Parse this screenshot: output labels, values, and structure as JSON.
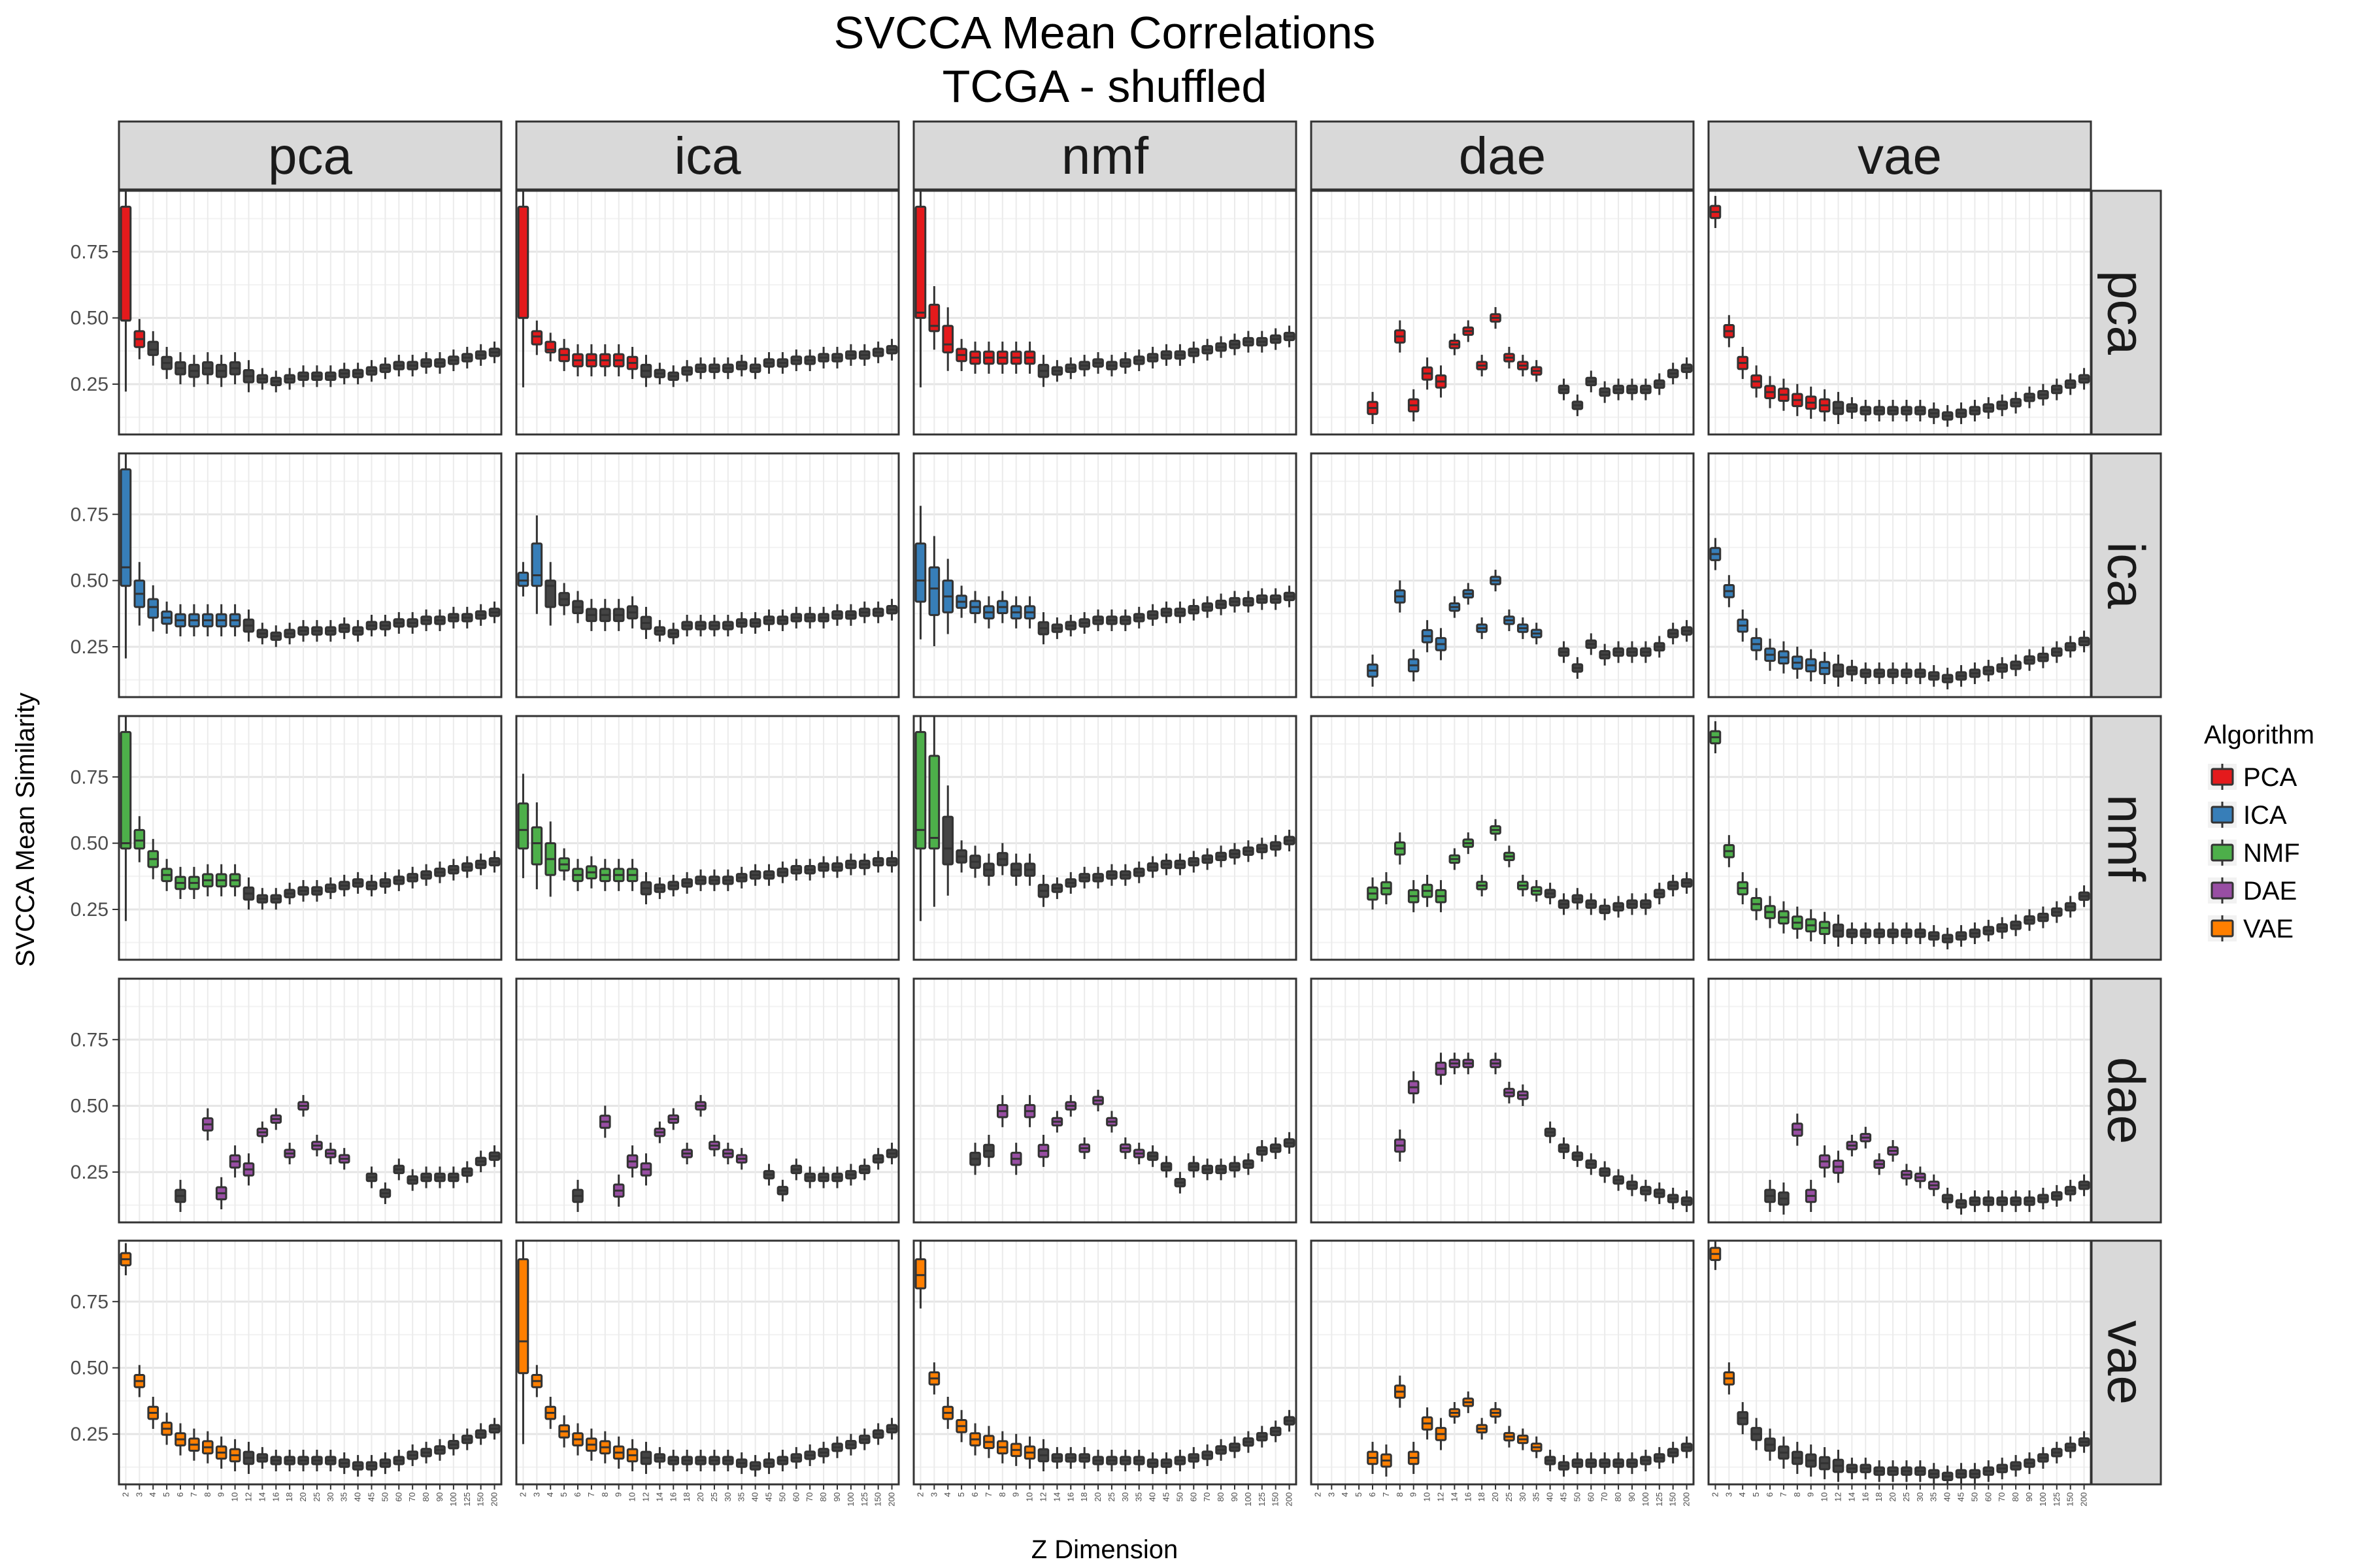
{
  "chart_data": {
    "type": "boxplot-facet-grid",
    "title_lines": [
      "SVCCA Mean Correlations",
      "TCGA - shuffled"
    ],
    "xlabel": "Z Dimension",
    "ylabel": "SVCCA Mean Similarity",
    "y_ticks": [
      0.25,
      0.5,
      0.75
    ],
    "y_tick_labels": [
      "0.25",
      "0.50",
      "0.75"
    ],
    "ylim": [
      0.06,
      0.98
    ],
    "grid": true,
    "legend_position": "right",
    "legend_title": "Algorithm",
    "legend": [
      {
        "key": "pca",
        "label": "PCA",
        "color": "#e41a1c"
      },
      {
        "key": "ica",
        "label": "ICA",
        "color": "#377eb8"
      },
      {
        "key": "nmf",
        "label": "NMF",
        "color": "#4daf4a"
      },
      {
        "key": "dae",
        "label": "DAE",
        "color": "#984ea3"
      },
      {
        "key": "vae",
        "label": "VAE",
        "color": "#ff7f00"
      }
    ],
    "col_facets": [
      "pca",
      "ica",
      "nmf",
      "dae",
      "vae"
    ],
    "row_facets": [
      "pca",
      "ica",
      "nmf",
      "dae",
      "vae"
    ],
    "z_dims": [
      "2",
      "3",
      "4",
      "5",
      "6",
      "7",
      "8",
      "9",
      "10",
      "12",
      "14",
      "16",
      "18",
      "20",
      "25",
      "30",
      "35",
      "40",
      "45",
      "50",
      "60",
      "70",
      "80",
      "90",
      "100",
      "125",
      "150",
      "200"
    ],
    "panel_medians": {
      "pca|pca": [
        0.49,
        0.42,
        0.38,
        0.33,
        0.31,
        0.3,
        0.31,
        0.3,
        0.31,
        0.28,
        0.27,
        0.26,
        0.27,
        0.28,
        0.28,
        0.28,
        0.29,
        0.29,
        0.3,
        0.31,
        0.32,
        0.32,
        0.33,
        0.33,
        0.34,
        0.35,
        0.36,
        0.37
      ],
      "pca|ica": [
        0.5,
        0.43,
        0.38,
        0.36,
        0.34,
        0.34,
        0.34,
        0.34,
        0.33,
        0.3,
        0.29,
        0.28,
        0.3,
        0.31,
        0.31,
        0.31,
        0.32,
        0.31,
        0.33,
        0.33,
        0.34,
        0.34,
        0.35,
        0.35,
        0.36,
        0.36,
        0.37,
        0.38
      ],
      "pca|nmf": [
        0.52,
        0.47,
        0.4,
        0.36,
        0.35,
        0.35,
        0.35,
        0.35,
        0.35,
        0.3,
        0.3,
        0.31,
        0.32,
        0.33,
        0.32,
        0.33,
        0.34,
        0.35,
        0.36,
        0.36,
        0.37,
        0.38,
        0.39,
        0.4,
        0.41,
        0.41,
        0.42,
        0.43
      ],
      "pca|dae": [
        null,
        null,
        null,
        null,
        0.16,
        null,
        0.43,
        0.17,
        0.29,
        0.26,
        0.4,
        0.45,
        0.32,
        0.5,
        0.35,
        0.32,
        0.3,
        null,
        0.23,
        0.17,
        0.26,
        0.22,
        0.23,
        0.23,
        0.23,
        0.25,
        0.29,
        0.31
      ],
      "pca|vae": [
        0.9,
        0.45,
        0.33,
        0.26,
        0.22,
        0.21,
        0.19,
        0.18,
        0.17,
        0.16,
        0.16,
        0.15,
        0.15,
        0.15,
        0.15,
        0.15,
        0.14,
        0.13,
        0.14,
        0.15,
        0.16,
        0.17,
        0.18,
        0.2,
        0.21,
        0.23,
        0.25,
        0.27
      ],
      "ica|pca": [
        0.55,
        0.45,
        0.4,
        0.36,
        0.35,
        0.35,
        0.35,
        0.35,
        0.35,
        0.33,
        0.3,
        0.29,
        0.3,
        0.31,
        0.31,
        0.31,
        0.32,
        0.31,
        0.33,
        0.33,
        0.34,
        0.34,
        0.35,
        0.35,
        0.36,
        0.36,
        0.37,
        0.38
      ],
      "ica|ica": [
        0.5,
        0.52,
        0.48,
        0.43,
        0.4,
        0.37,
        0.37,
        0.37,
        0.38,
        0.34,
        0.31,
        0.3,
        0.33,
        0.33,
        0.33,
        0.33,
        0.34,
        0.34,
        0.35,
        0.35,
        0.36,
        0.36,
        0.36,
        0.37,
        0.37,
        0.38,
        0.38,
        0.39
      ],
      "ica|nmf": [
        0.5,
        0.47,
        0.44,
        0.42,
        0.4,
        0.38,
        0.4,
        0.38,
        0.38,
        0.32,
        0.32,
        0.33,
        0.34,
        0.35,
        0.35,
        0.35,
        0.36,
        0.37,
        0.38,
        0.38,
        0.39,
        0.4,
        0.41,
        0.42,
        0.42,
        0.43,
        0.43,
        0.44
      ],
      "ica|dae": [
        null,
        null,
        null,
        null,
        0.16,
        null,
        0.44,
        0.18,
        0.29,
        0.26,
        0.4,
        0.45,
        0.32,
        0.5,
        0.35,
        0.32,
        0.3,
        null,
        0.23,
        0.17,
        0.26,
        0.22,
        0.23,
        0.23,
        0.23,
        0.25,
        0.3,
        0.31
      ],
      "ica|vae": [
        0.6,
        0.46,
        0.33,
        0.26,
        0.22,
        0.21,
        0.19,
        0.18,
        0.17,
        0.16,
        0.16,
        0.15,
        0.15,
        0.15,
        0.15,
        0.15,
        0.14,
        0.13,
        0.14,
        0.15,
        0.16,
        0.17,
        0.18,
        0.2,
        0.21,
        0.23,
        0.25,
        0.27
      ],
      "nmf|pca": [
        0.5,
        0.51,
        0.44,
        0.38,
        0.35,
        0.35,
        0.36,
        0.36,
        0.36,
        0.31,
        0.29,
        0.29,
        0.31,
        0.32,
        0.32,
        0.33,
        0.34,
        0.35,
        0.34,
        0.35,
        0.36,
        0.37,
        0.38,
        0.39,
        0.4,
        0.41,
        0.42,
        0.43
      ],
      "nmf|ica": [
        0.55,
        0.5,
        0.44,
        0.42,
        0.38,
        0.39,
        0.38,
        0.38,
        0.38,
        0.33,
        0.33,
        0.34,
        0.35,
        0.36,
        0.36,
        0.36,
        0.37,
        0.38,
        0.38,
        0.39,
        0.4,
        0.4,
        0.41,
        0.41,
        0.42,
        0.42,
        0.43,
        0.43
      ],
      "nmf|nmf": [
        0.55,
        0.52,
        0.48,
        0.45,
        0.43,
        0.4,
        0.44,
        0.4,
        0.4,
        0.32,
        0.33,
        0.35,
        0.37,
        0.37,
        0.38,
        0.38,
        0.39,
        0.41,
        0.42,
        0.42,
        0.43,
        0.44,
        0.45,
        0.46,
        0.47,
        0.48,
        0.49,
        0.51
      ],
      "nmf|dae": [
        null,
        null,
        null,
        null,
        0.31,
        0.33,
        0.48,
        0.3,
        0.32,
        0.3,
        0.44,
        0.5,
        0.34,
        0.55,
        0.45,
        0.34,
        0.32,
        0.31,
        0.27,
        0.29,
        0.27,
        0.25,
        0.26,
        0.27,
        0.27,
        0.31,
        0.34,
        0.35
      ],
      "nmf|vae": [
        0.9,
        0.47,
        0.33,
        0.27,
        0.24,
        0.22,
        0.2,
        0.19,
        0.18,
        0.17,
        0.16,
        0.16,
        0.16,
        0.16,
        0.16,
        0.16,
        0.15,
        0.14,
        0.15,
        0.16,
        0.17,
        0.18,
        0.19,
        0.21,
        0.22,
        0.24,
        0.26,
        0.3
      ],
      "dae|pca": [
        null,
        null,
        null,
        null,
        0.16,
        null,
        0.43,
        0.17,
        0.29,
        0.26,
        0.4,
        0.45,
        0.32,
        0.5,
        0.35,
        0.32,
        0.3,
        null,
        0.23,
        0.17,
        0.26,
        0.22,
        0.23,
        0.23,
        0.23,
        0.25,
        0.29,
        0.31
      ],
      "dae|ica": [
        null,
        null,
        null,
        null,
        0.16,
        null,
        0.44,
        0.18,
        0.29,
        0.26,
        0.4,
        0.45,
        0.32,
        0.5,
        0.35,
        0.32,
        0.3,
        null,
        0.24,
        0.18,
        0.26,
        0.23,
        0.23,
        0.23,
        0.24,
        0.26,
        0.3,
        0.32
      ],
      "dae|nmf": [
        null,
        null,
        null,
        null,
        0.3,
        0.33,
        0.48,
        0.3,
        0.48,
        0.33,
        0.44,
        0.5,
        0.34,
        0.52,
        0.44,
        0.34,
        0.32,
        0.31,
        0.27,
        0.21,
        0.27,
        0.26,
        0.26,
        0.27,
        0.28,
        0.33,
        0.34,
        0.36
      ],
      "dae|dae": [
        null,
        null,
        null,
        null,
        null,
        null,
        0.35,
        0.57,
        null,
        0.64,
        0.66,
        0.66,
        null,
        0.66,
        0.55,
        0.54,
        null,
        0.4,
        0.34,
        0.31,
        0.28,
        0.25,
        0.22,
        0.2,
        0.18,
        0.17,
        0.15,
        0.14
      ],
      "dae|vae": [
        null,
        null,
        null,
        null,
        0.16,
        0.15,
        0.41,
        0.16,
        0.29,
        0.27,
        0.35,
        0.38,
        0.28,
        0.33,
        0.24,
        0.23,
        0.2,
        0.15,
        0.13,
        0.14,
        0.14,
        0.14,
        0.14,
        0.14,
        0.15,
        0.16,
        0.18,
        0.2
      ],
      "vae|pca": [
        0.91,
        0.45,
        0.33,
        0.27,
        0.23,
        0.21,
        0.2,
        0.18,
        0.17,
        0.16,
        0.16,
        0.15,
        0.15,
        0.15,
        0.15,
        0.15,
        0.14,
        0.13,
        0.13,
        0.14,
        0.15,
        0.17,
        0.18,
        0.19,
        0.21,
        0.23,
        0.25,
        0.27
      ],
      "vae|ica": [
        0.6,
        0.45,
        0.33,
        0.26,
        0.23,
        0.21,
        0.2,
        0.18,
        0.17,
        0.16,
        0.16,
        0.15,
        0.15,
        0.15,
        0.15,
        0.15,
        0.14,
        0.13,
        0.14,
        0.15,
        0.16,
        0.17,
        0.18,
        0.2,
        0.21,
        0.23,
        0.25,
        0.27
      ],
      "vae|nmf": [
        0.85,
        0.46,
        0.33,
        0.28,
        0.23,
        0.22,
        0.2,
        0.19,
        0.18,
        0.17,
        0.16,
        0.16,
        0.16,
        0.15,
        0.15,
        0.15,
        0.15,
        0.14,
        0.14,
        0.15,
        0.16,
        0.17,
        0.19,
        0.2,
        0.22,
        0.24,
        0.26,
        0.3
      ],
      "vae|dae": [
        null,
        null,
        null,
        null,
        0.16,
        0.15,
        0.41,
        0.16,
        0.29,
        0.25,
        0.33,
        0.37,
        0.27,
        0.33,
        0.24,
        0.23,
        0.2,
        0.15,
        0.13,
        0.14,
        0.14,
        0.14,
        0.14,
        0.14,
        0.15,
        0.16,
        0.18,
        0.2
      ],
      "vae|vae": [
        0.93,
        0.46,
        0.31,
        0.25,
        0.21,
        0.18,
        0.16,
        0.15,
        0.14,
        0.13,
        0.12,
        0.12,
        0.11,
        0.11,
        0.11,
        0.11,
        0.1,
        0.09,
        0.1,
        0.1,
        0.11,
        0.12,
        0.13,
        0.14,
        0.16,
        0.18,
        0.2,
        0.22
      ]
    },
    "panel_upper": {
      "pca|pca": [
        0.92,
        0.45,
        0.41
      ],
      "pca|ica": [
        0.92,
        0.45,
        0.41
      ],
      "pca|nmf": [
        0.92,
        0.55,
        0.47
      ],
      "ica|pca": [
        0.92,
        0.5,
        0.43
      ],
      "ica|ica": [
        0.53,
        0.64,
        0.5
      ],
      "ica|nmf": [
        0.64,
        0.55,
        0.5
      ],
      "nmf|pca": [
        0.92,
        0.55,
        0.47
      ],
      "nmf|ica": [
        0.65,
        0.56,
        0.5
      ],
      "nmf|nmf": [
        0.92,
        0.83,
        0.6
      ],
      "vae|ica": [
        0.91
      ],
      "vae|nmf": [
        0.91
      ]
    },
    "panel_lower": {
      "pca|pca": [
        0.49,
        0.39,
        0.36
      ],
      "pca|ica": [
        0.5,
        0.4,
        0.37
      ],
      "pca|nmf": [
        0.5,
        0.45,
        0.37
      ],
      "ica|pca": [
        0.48,
        0.4,
        0.36
      ],
      "ica|ica": [
        0.48,
        0.48,
        0.4
      ],
      "ica|nmf": [
        0.42,
        0.37,
        0.38
      ],
      "nmf|pca": [
        0.48,
        0.48,
        0.41
      ],
      "nmf|ica": [
        0.48,
        0.42,
        0.38
      ],
      "nmf|nmf": [
        0.48,
        0.48,
        0.42
      ],
      "vae|ica": [
        0.48
      ],
      "vae|nmf": [
        0.8
      ]
    }
  }
}
